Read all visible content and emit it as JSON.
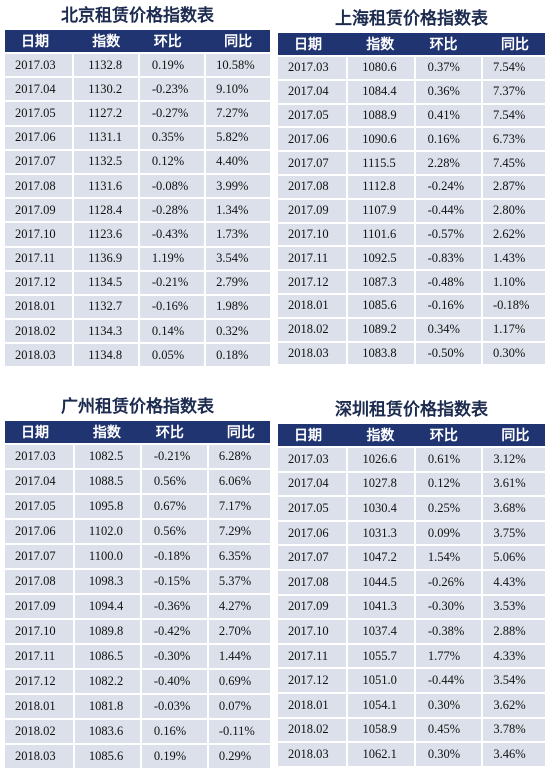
{
  "columns": [
    "日期",
    "指数",
    "环比",
    "同比"
  ],
  "tables": [
    {
      "title": "北京租赁价格指数表",
      "rows": [
        [
          "2017.03",
          "1132.8",
          "0.19%",
          "10.58%"
        ],
        [
          "2017.04",
          "1130.2",
          "-0.23%",
          "9.10%"
        ],
        [
          "2017.05",
          "1127.2",
          "-0.27%",
          "7.27%"
        ],
        [
          "2017.06",
          "1131.1",
          "0.35%",
          "5.82%"
        ],
        [
          "2017.07",
          "1132.5",
          "0.12%",
          "4.40%"
        ],
        [
          "2017.08",
          "1131.6",
          "-0.08%",
          "3.99%"
        ],
        [
          "2017.09",
          "1128.4",
          "-0.28%",
          "1.34%"
        ],
        [
          "2017.10",
          "1123.6",
          "-0.43%",
          "1.73%"
        ],
        [
          "2017.11",
          "1136.9",
          "1.19%",
          "3.54%"
        ],
        [
          "2017.12",
          "1134.5",
          "-0.21%",
          "2.79%"
        ],
        [
          "2018.01",
          "1132.7",
          "-0.16%",
          "1.98%"
        ],
        [
          "2018.02",
          "1134.3",
          "0.14%",
          "0.32%"
        ],
        [
          "2018.03",
          "1134.8",
          "0.05%",
          "0.18%"
        ]
      ]
    },
    {
      "title": "上海租赁价格指数表",
      "rows": [
        [
          "2017.03",
          "1080.6",
          "0.37%",
          "7.54%"
        ],
        [
          "2017.04",
          "1084.4",
          "0.36%",
          "7.37%"
        ],
        [
          "2017.05",
          "1088.9",
          "0.41%",
          "7.54%"
        ],
        [
          "2017.06",
          "1090.6",
          "0.16%",
          "6.73%"
        ],
        [
          "2017.07",
          "1115.5",
          "2.28%",
          "7.45%"
        ],
        [
          "2017.08",
          "1112.8",
          "-0.24%",
          "2.87%"
        ],
        [
          "2017.09",
          "1107.9",
          "-0.44%",
          "2.80%"
        ],
        [
          "2017.10",
          "1101.6",
          "-0.57%",
          "2.62%"
        ],
        [
          "2017.11",
          "1092.5",
          "-0.83%",
          "1.43%"
        ],
        [
          "2017.12",
          "1087.3",
          "-0.48%",
          "1.10%"
        ],
        [
          "2018.01",
          "1085.6",
          "-0.16%",
          "-0.18%"
        ],
        [
          "2018.02",
          "1089.2",
          "0.34%",
          "1.17%"
        ],
        [
          "2018.03",
          "1083.8",
          "-0.50%",
          "0.30%"
        ]
      ]
    },
    {
      "title": "广州租赁价格指数表",
      "rows": [
        [
          "2017.03",
          "1082.5",
          "-0.21%",
          "6.28%"
        ],
        [
          "2017.04",
          "1088.5",
          "0.56%",
          "6.06%"
        ],
        [
          "2017.05",
          "1095.8",
          "0.67%",
          "7.17%"
        ],
        [
          "2017.06",
          "1102.0",
          "0.56%",
          "7.29%"
        ],
        [
          "2017.07",
          "1100.0",
          "-0.18%",
          "6.35%"
        ],
        [
          "2017.08",
          "1098.3",
          "-0.15%",
          "5.37%"
        ],
        [
          "2017.09",
          "1094.4",
          "-0.36%",
          "4.27%"
        ],
        [
          "2017.10",
          "1089.8",
          "-0.42%",
          "2.70%"
        ],
        [
          "2017.11",
          "1086.5",
          "-0.30%",
          "1.44%"
        ],
        [
          "2017.12",
          "1082.2",
          "-0.40%",
          "0.69%"
        ],
        [
          "2018.01",
          "1081.8",
          "-0.03%",
          "0.07%"
        ],
        [
          "2018.02",
          "1083.6",
          "0.16%",
          "-0.11%"
        ],
        [
          "2018.03",
          "1085.6",
          "0.19%",
          "0.29%"
        ]
      ]
    },
    {
      "title": "深圳租赁价格指数表",
      "rows": [
        [
          "2017.03",
          "1026.6",
          "0.61%",
          "3.12%"
        ],
        [
          "2017.04",
          "1027.8",
          "0.12%",
          "3.61%"
        ],
        [
          "2017.05",
          "1030.4",
          "0.25%",
          "3.68%"
        ],
        [
          "2017.06",
          "1031.3",
          "0.09%",
          "3.75%"
        ],
        [
          "2017.07",
          "1047.2",
          "1.54%",
          "5.06%"
        ],
        [
          "2017.08",
          "1044.5",
          "-0.26%",
          "4.43%"
        ],
        [
          "2017.09",
          "1041.3",
          "-0.30%",
          "3.53%"
        ],
        [
          "2017.10",
          "1037.4",
          "-0.38%",
          "2.88%"
        ],
        [
          "2017.11",
          "1055.7",
          "1.77%",
          "4.33%"
        ],
        [
          "2017.12",
          "1051.0",
          "-0.44%",
          "3.54%"
        ],
        [
          "2018.01",
          "1054.1",
          "0.30%",
          "3.62%"
        ],
        [
          "2018.02",
          "1058.9",
          "0.45%",
          "3.78%"
        ],
        [
          "2018.03",
          "1062.1",
          "0.30%",
          "3.46%"
        ]
      ]
    }
  ],
  "colors": {
    "header_bg": "#1f3470",
    "cell_bg": "#dbe0ea",
    "title_color": "#1c2b4f"
  }
}
